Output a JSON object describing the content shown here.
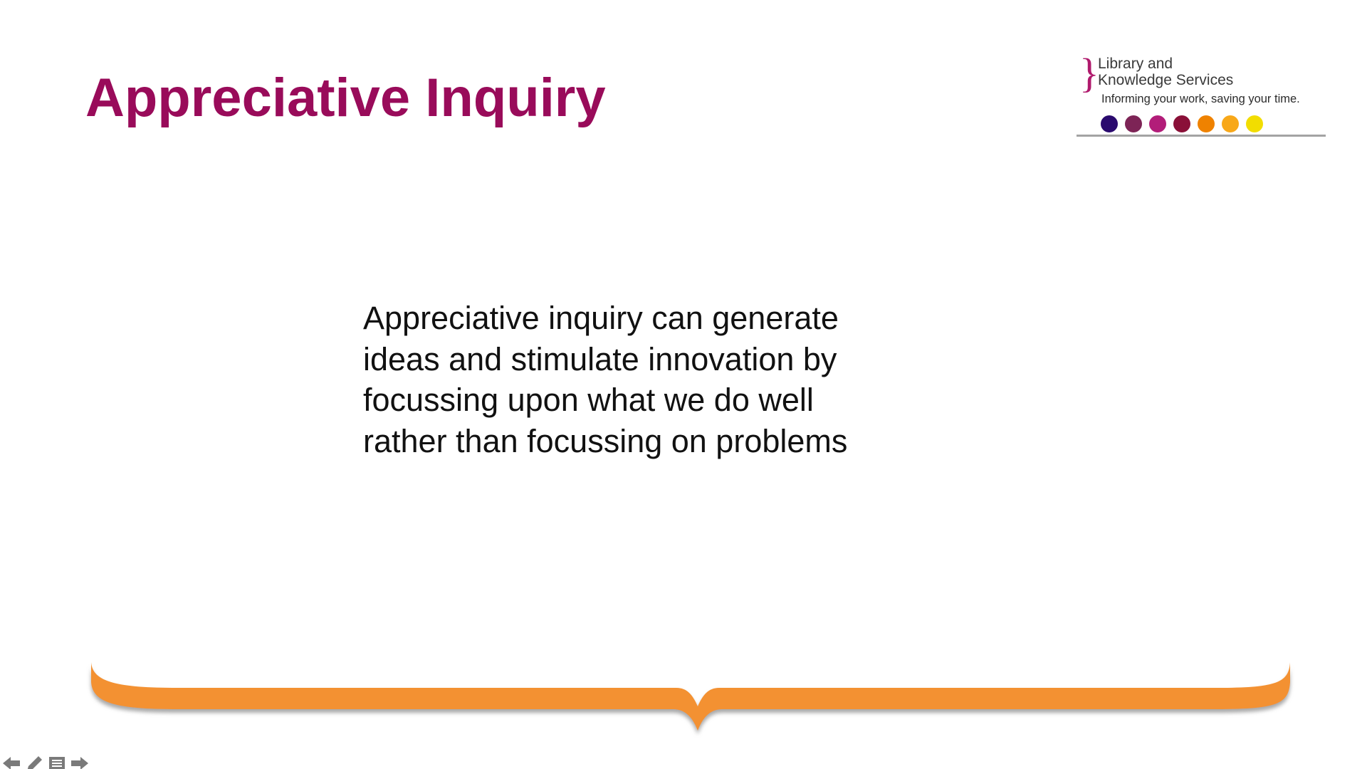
{
  "slide": {
    "title": "Appreciative Inquiry",
    "body_lines": [
      "Appreciative inquiry can generate",
      "ideas and stimulate innovation by",
      "focussing upon what we do well",
      "rather than focussing on problems"
    ]
  },
  "logo": {
    "brace": "}",
    "name_line1": "Library and",
    "name_line2": "Knowledge Services",
    "tagline": "Informing your work, saving your time.",
    "dot_colors": [
      "#2a0a6e",
      "#7d2456",
      "#b21d79",
      "#8a1038",
      "#ef8200",
      "#f8a819",
      "#f2dd00"
    ]
  },
  "colors": {
    "title": "#990b5a",
    "brace_orange": "#f39130",
    "brace_shadow": "#9a9a9a",
    "nav_icons": "#7a7a7a"
  },
  "nav_controls": {
    "icons": [
      "arrow-left-icon",
      "pen-icon",
      "menu-icon",
      "arrow-right-icon"
    ]
  }
}
